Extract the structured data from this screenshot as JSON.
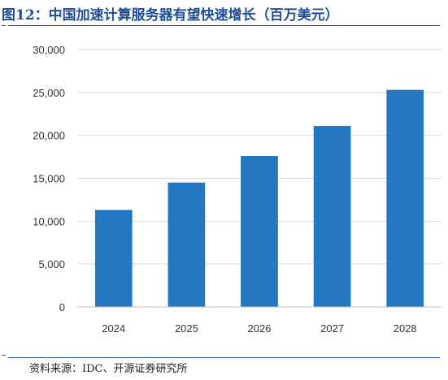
{
  "figure": {
    "title": "图12：中国加速计算服务器有望快速增长（百万美元）",
    "source": "资料来源：IDC、开源证券研究所"
  },
  "colors": {
    "bar": "#2477c1",
    "title": "#1f4e96",
    "grid": "#d9d9d9"
  },
  "chart_data": {
    "type": "bar",
    "categories": [
      "2024",
      "2025",
      "2026",
      "2027",
      "2028"
    ],
    "values": [
      11300,
      14500,
      17600,
      21100,
      25300
    ],
    "ylim": [
      0,
      30000
    ],
    "yticks": [
      0,
      5000,
      10000,
      15000,
      20000,
      25000,
      30000
    ],
    "ytick_labels": [
      "0",
      "5,000",
      "10,000",
      "15,000",
      "20,000",
      "25,000",
      "30,000"
    ],
    "grid": true,
    "legend": "none"
  }
}
